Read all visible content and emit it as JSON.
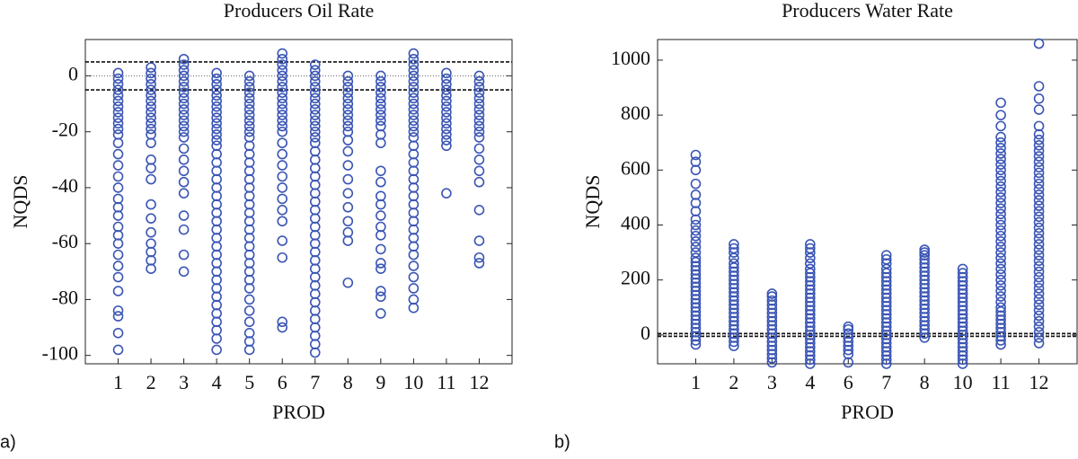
{
  "chart_data": [
    {
      "type": "scatter",
      "title": "Producers Oil Rate",
      "panel_label": "a)",
      "xlabel": "PROD",
      "ylabel": "NQDS",
      "color": "#3a55b4",
      "categories": [
        "1",
        "2",
        "3",
        "4",
        "5",
        "6",
        "7",
        "8",
        "9",
        "10",
        "11",
        "12"
      ],
      "ylim": [
        -103,
        13
      ],
      "yticks": [
        -100,
        -80,
        -60,
        -40,
        -20,
        0
      ],
      "dashed_lines": [
        5,
        -5
      ],
      "dotted_lines": [
        0
      ],
      "values": [
        [
          1,
          -1,
          -3,
          -5,
          -7,
          -9,
          -11,
          -13,
          -15,
          -17,
          -19,
          -21,
          -24,
          -28,
          -32,
          -36,
          -40,
          -44,
          -47,
          -50,
          -54,
          -57,
          -60,
          -64,
          -68,
          -72,
          -77,
          -84,
          -86,
          -92,
          -98
        ],
        [
          3,
          1,
          -1,
          -3,
          -5,
          -7,
          -9,
          -11,
          -13,
          -15,
          -17,
          -19,
          -21,
          -24,
          -30,
          -33,
          -37,
          -46,
          -51,
          -56,
          -60,
          -63,
          -66,
          -69
        ],
        [
          6,
          4,
          2,
          0,
          -2,
          -4,
          -6,
          -8,
          -10,
          -12,
          -14,
          -16,
          -18,
          -20,
          -22,
          -26,
          -30,
          -34,
          -38,
          -42,
          -50,
          -55,
          -64,
          -70
        ],
        [
          1,
          -1,
          -3,
          -5,
          -7,
          -9,
          -11,
          -13,
          -15,
          -17,
          -19,
          -21,
          -23,
          -25,
          -28,
          -31,
          -34,
          -37,
          -40,
          -43,
          -46,
          -49,
          -52,
          -55,
          -58,
          -61,
          -64,
          -67,
          -70,
          -73,
          -76,
          -79,
          -82,
          -85,
          -88,
          -91,
          -94,
          -98
        ],
        [
          0,
          -2,
          -4,
          -6,
          -8,
          -10,
          -12,
          -14,
          -16,
          -18,
          -20,
          -22,
          -25,
          -28,
          -31,
          -34,
          -37,
          -40,
          -43,
          -46,
          -49,
          -52,
          -55,
          -58,
          -61,
          -64,
          -67,
          -70,
          -73,
          -76,
          -80,
          -84,
          -88,
          -92,
          -95,
          -98
        ],
        [
          8,
          6,
          4,
          2,
          0,
          -2,
          -4,
          -6,
          -8,
          -10,
          -12,
          -14,
          -16,
          -18,
          -20,
          -24,
          -28,
          -32,
          -36,
          -40,
          -44,
          -48,
          -52,
          -59,
          -65,
          -88,
          -90
        ],
        [
          4,
          2,
          0,
          -2,
          -4,
          -6,
          -8,
          -10,
          -12,
          -14,
          -16,
          -18,
          -20,
          -22,
          -24,
          -27,
          -30,
          -33,
          -36,
          -39,
          -42,
          -45,
          -48,
          -51,
          -54,
          -57,
          -60,
          -63,
          -66,
          -69,
          -72,
          -75,
          -78,
          -81,
          -84,
          -87,
          -90,
          -93,
          -96,
          -99
        ],
        [
          0,
          -2,
          -4,
          -6,
          -8,
          -10,
          -12,
          -14,
          -16,
          -18,
          -20,
          -23,
          -27,
          -32,
          -37,
          -42,
          -47,
          -52,
          -56,
          -59,
          -74
        ],
        [
          0,
          -2,
          -4,
          -6,
          -8,
          -10,
          -12,
          -14,
          -16,
          -18,
          -21,
          -24,
          -34,
          -38,
          -43,
          -46,
          -50,
          -54,
          -57,
          -62,
          -67,
          -69,
          -77,
          -79,
          -85
        ],
        [
          8,
          6,
          4,
          2,
          0,
          -2,
          -4,
          -6,
          -8,
          -10,
          -12,
          -14,
          -16,
          -18,
          -20,
          -22,
          -25,
          -28,
          -31,
          -34,
          -37,
          -40,
          -43,
          -46,
          -49,
          -52,
          -55,
          -58,
          -61,
          -64,
          -68,
          -72,
          -76,
          -80,
          -83
        ],
        [
          1,
          -1,
          -3,
          -5,
          -7,
          -9,
          -11,
          -13,
          -15,
          -17,
          -19,
          -21,
          -23,
          -25,
          -42
        ],
        [
          0,
          -2,
          -4,
          -6,
          -8,
          -10,
          -12,
          -14,
          -16,
          -18,
          -20,
          -22,
          -26,
          -30,
          -34,
          -38,
          -48,
          -59,
          -65,
          -67
        ]
      ]
    },
    {
      "type": "scatter",
      "title": "Producers Water Rate",
      "panel_label": "b)",
      "xlabel": "PROD",
      "ylabel": "NQDS",
      "color": "#3a55b4",
      "categories": [
        "1",
        "2",
        "3",
        "4",
        "6",
        "7",
        "8",
        "10",
        "11",
        "12"
      ],
      "ylim": [
        -105,
        1075
      ],
      "yticks": [
        0,
        200,
        400,
        600,
        800,
        1000
      ],
      "dashed_lines": [
        5,
        -5
      ],
      "dotted_lines": [
        0
      ],
      "values": [
        [
          -35,
          -20,
          -5,
          10,
          25,
          40,
          55,
          70,
          85,
          100,
          115,
          130,
          145,
          160,
          175,
          190,
          205,
          220,
          235,
          250,
          265,
          280,
          300,
          320,
          340,
          360,
          380,
          400,
          420,
          450,
          480,
          510,
          550,
          600,
          630,
          655
        ],
        [
          -40,
          -25,
          -10,
          5,
          20,
          35,
          50,
          65,
          80,
          95,
          110,
          125,
          140,
          155,
          170,
          185,
          200,
          215,
          230,
          245,
          260,
          280,
          300,
          315,
          330
        ],
        [
          -100,
          -85,
          -70,
          -55,
          -40,
          -25,
          -10,
          5,
          20,
          35,
          50,
          65,
          80,
          95,
          110,
          125,
          140,
          150
        ],
        [
          -105,
          -90,
          -75,
          -60,
          -45,
          -30,
          -15,
          0,
          15,
          30,
          45,
          60,
          75,
          90,
          105,
          120,
          135,
          150,
          165,
          180,
          195,
          210,
          225,
          240,
          260,
          280,
          300,
          315,
          330
        ],
        [
          -100,
          -70,
          -55,
          -40,
          -25,
          -10,
          5,
          20,
          30
        ],
        [
          -105,
          -90,
          -75,
          -60,
          -45,
          -30,
          -15,
          0,
          15,
          30,
          45,
          60,
          75,
          90,
          105,
          120,
          135,
          150,
          165,
          180,
          195,
          210,
          225,
          240,
          260,
          275,
          290
        ],
        [
          -10,
          5,
          20,
          35,
          50,
          65,
          80,
          95,
          110,
          125,
          140,
          155,
          170,
          185,
          200,
          215,
          230,
          245,
          260,
          275,
          290,
          300,
          310
        ],
        [
          -105,
          -90,
          -75,
          -60,
          -45,
          -30,
          -15,
          0,
          15,
          30,
          45,
          60,
          75,
          90,
          105,
          120,
          135,
          150,
          165,
          180,
          195,
          210,
          225,
          240
        ],
        [
          -35,
          -20,
          -5,
          10,
          25,
          40,
          55,
          70,
          85,
          100,
          120,
          140,
          160,
          180,
          200,
          220,
          240,
          260,
          280,
          300,
          320,
          340,
          360,
          380,
          400,
          420,
          440,
          460,
          480,
          500,
          520,
          540,
          560,
          580,
          600,
          620,
          640,
          660,
          680,
          700,
          720,
          760,
          800,
          845
        ],
        [
          -30,
          -10,
          10,
          30,
          50,
          70,
          90,
          110,
          130,
          150,
          170,
          190,
          210,
          230,
          250,
          270,
          290,
          310,
          330,
          350,
          370,
          390,
          410,
          430,
          450,
          470,
          490,
          510,
          530,
          550,
          570,
          590,
          610,
          630,
          650,
          670,
          690,
          710,
          730,
          760,
          820,
          860,
          905,
          1060
        ]
      ]
    }
  ]
}
